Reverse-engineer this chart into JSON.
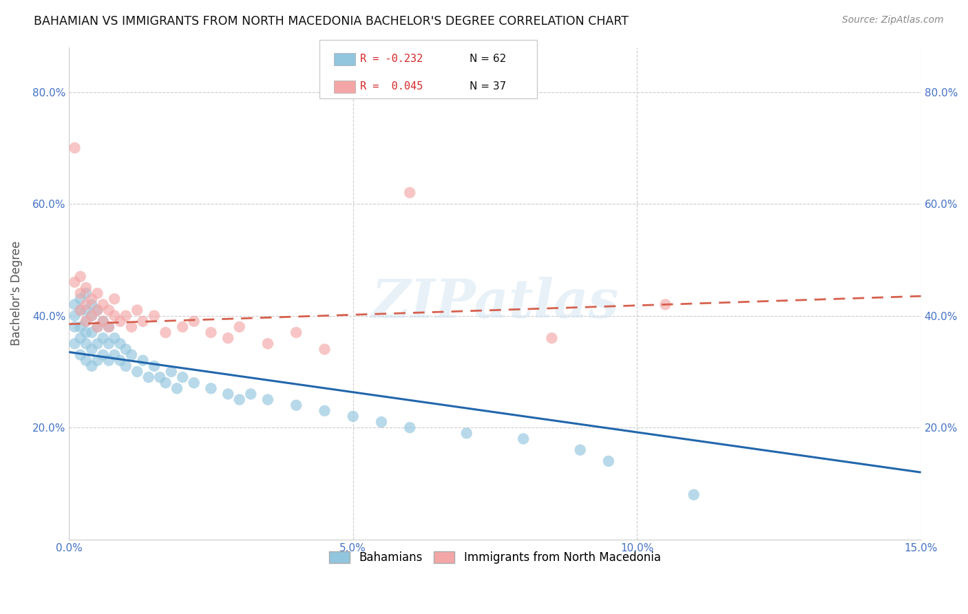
{
  "title": "BAHAMIAN VS IMMIGRANTS FROM NORTH MACEDONIA BACHELOR'S DEGREE CORRELATION CHART",
  "source": "Source: ZipAtlas.com",
  "ylabel": "Bachelor's Degree",
  "x_min": 0.0,
  "x_max": 0.15,
  "y_min": 0.0,
  "y_max": 0.88,
  "x_ticks": [
    0.0,
    0.05,
    0.1,
    0.15
  ],
  "x_tick_labels": [
    "0.0%",
    "5.0%",
    "10.0%",
    "15.0%"
  ],
  "y_ticks": [
    0.0,
    0.2,
    0.4,
    0.6,
    0.8
  ],
  "y_tick_labels": [
    "",
    "20.0%",
    "40.0%",
    "60.0%",
    "80.0%"
  ],
  "legend_r_blue": "R = -0.232",
  "legend_n_blue": "N = 62",
  "legend_r_pink": "R =  0.045",
  "legend_n_pink": "N = 37",
  "blue_color": "#92c5de",
  "pink_color": "#f4a6a6",
  "blue_line_color": "#2166ac",
  "pink_line_color": "#d6604d",
  "watermark": "ZIPatlas",
  "blue_line_x0": 0.0,
  "blue_line_y0": 0.335,
  "blue_line_x1": 0.15,
  "blue_line_y1": 0.12,
  "pink_line_x0": 0.0,
  "pink_line_y0": 0.385,
  "pink_line_x1": 0.15,
  "pink_line_y1": 0.435,
  "blue_scatter_x": [
    0.001,
    0.001,
    0.001,
    0.001,
    0.002,
    0.002,
    0.002,
    0.002,
    0.002,
    0.003,
    0.003,
    0.003,
    0.003,
    0.003,
    0.003,
    0.004,
    0.004,
    0.004,
    0.004,
    0.004,
    0.005,
    0.005,
    0.005,
    0.005,
    0.006,
    0.006,
    0.006,
    0.007,
    0.007,
    0.007,
    0.008,
    0.008,
    0.009,
    0.009,
    0.01,
    0.01,
    0.011,
    0.012,
    0.013,
    0.014,
    0.015,
    0.016,
    0.017,
    0.018,
    0.019,
    0.02,
    0.022,
    0.025,
    0.028,
    0.03,
    0.032,
    0.035,
    0.04,
    0.045,
    0.05,
    0.055,
    0.06,
    0.07,
    0.08,
    0.09,
    0.095,
    0.11
  ],
  "blue_scatter_y": [
    0.42,
    0.4,
    0.38,
    0.35,
    0.43,
    0.41,
    0.38,
    0.36,
    0.33,
    0.44,
    0.41,
    0.39,
    0.37,
    0.35,
    0.32,
    0.42,
    0.4,
    0.37,
    0.34,
    0.31,
    0.41,
    0.38,
    0.35,
    0.32,
    0.39,
    0.36,
    0.33,
    0.38,
    0.35,
    0.32,
    0.36,
    0.33,
    0.35,
    0.32,
    0.34,
    0.31,
    0.33,
    0.3,
    0.32,
    0.29,
    0.31,
    0.29,
    0.28,
    0.3,
    0.27,
    0.29,
    0.28,
    0.27,
    0.26,
    0.25,
    0.26,
    0.25,
    0.24,
    0.23,
    0.22,
    0.21,
    0.2,
    0.19,
    0.18,
    0.16,
    0.14,
    0.08
  ],
  "pink_scatter_x": [
    0.001,
    0.001,
    0.002,
    0.002,
    0.002,
    0.003,
    0.003,
    0.003,
    0.004,
    0.004,
    0.005,
    0.005,
    0.005,
    0.006,
    0.006,
    0.007,
    0.007,
    0.008,
    0.008,
    0.009,
    0.01,
    0.011,
    0.012,
    0.013,
    0.015,
    0.017,
    0.02,
    0.022,
    0.025,
    0.028,
    0.03,
    0.035,
    0.04,
    0.045,
    0.06,
    0.085,
    0.105
  ],
  "pink_scatter_y": [
    0.7,
    0.46,
    0.47,
    0.44,
    0.41,
    0.45,
    0.42,
    0.39,
    0.43,
    0.4,
    0.44,
    0.41,
    0.38,
    0.42,
    0.39,
    0.41,
    0.38,
    0.43,
    0.4,
    0.39,
    0.4,
    0.38,
    0.41,
    0.39,
    0.4,
    0.37,
    0.38,
    0.39,
    0.37,
    0.36,
    0.38,
    0.35,
    0.37,
    0.34,
    0.62,
    0.36,
    0.42
  ]
}
